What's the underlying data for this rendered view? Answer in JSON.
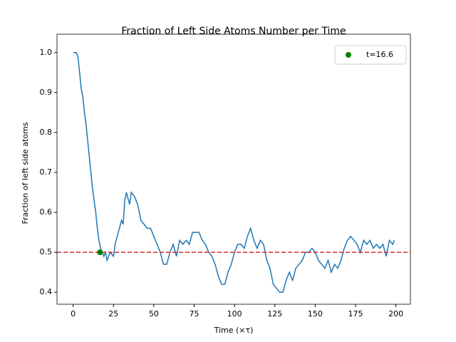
{
  "chart_data": {
    "type": "line",
    "title": "Fraction of Left Side Atoms Number per Time",
    "xlabel": "Time (×τ)",
    "ylabel": "Fraction of left side atoms",
    "xlim": [
      -10,
      209
    ],
    "ylim": [
      0.37,
      1.046
    ],
    "xticks": [
      0,
      25,
      50,
      75,
      100,
      125,
      150,
      175,
      200
    ],
    "yticks": [
      0.4,
      0.5,
      0.6,
      0.7,
      0.8,
      0.9,
      {
        "value": 1,
        "label": "1.0"
      }
    ],
    "x": [
      0,
      2,
      3,
      4,
      5,
      6,
      7,
      8,
      9,
      10,
      11,
      12,
      13,
      14,
      15,
      16,
      17,
      18,
      19,
      20,
      21,
      23,
      25,
      26,
      28,
      30,
      31,
      32,
      33,
      35,
      36,
      38,
      40,
      42,
      44,
      46,
      48,
      50,
      52,
      54,
      56,
      58,
      60,
      62,
      64,
      66,
      68,
      70,
      72,
      74,
      78,
      80,
      82,
      84,
      86,
      88,
      90,
      92,
      94,
      96,
      98,
      100,
      102,
      104,
      106,
      108,
      110,
      112,
      114,
      116,
      118,
      120,
      122,
      124,
      126,
      128,
      130,
      132,
      134,
      136,
      138,
      140,
      142,
      144,
      146,
      148,
      150,
      152,
      154,
      156,
      158,
      160,
      162,
      164,
      166,
      168,
      170,
      172,
      174,
      176,
      178,
      180,
      182,
      184,
      186,
      188,
      190,
      192,
      194,
      196,
      198,
      199
    ],
    "series": [
      {
        "color": "#1f77b4",
        "values": [
          1.0,
          1.0,
          0.99,
          0.95,
          0.91,
          0.89,
          0.85,
          0.82,
          0.78,
          0.74,
          0.7,
          0.66,
          0.63,
          0.6,
          0.56,
          0.53,
          0.51,
          0.5,
          0.49,
          0.5,
          0.48,
          0.5,
          0.49,
          0.52,
          0.55,
          0.58,
          0.57,
          0.63,
          0.65,
          0.62,
          0.65,
          0.64,
          0.62,
          0.58,
          0.57,
          0.56,
          0.56,
          0.54,
          0.52,
          0.5,
          0.47,
          0.47,
          0.5,
          0.52,
          0.49,
          0.53,
          0.52,
          0.53,
          0.52,
          0.55,
          0.55,
          0.53,
          0.52,
          0.5,
          0.49,
          0.47,
          0.44,
          0.42,
          0.42,
          0.45,
          0.47,
          0.5,
          0.52,
          0.52,
          0.51,
          0.54,
          0.56,
          0.53,
          0.51,
          0.53,
          0.52,
          0.48,
          0.46,
          0.42,
          0.41,
          0.4,
          0.4,
          0.43,
          0.45,
          0.43,
          0.46,
          0.47,
          0.48,
          0.5,
          0.5,
          0.51,
          0.5,
          0.48,
          0.47,
          0.46,
          0.48,
          0.45,
          0.47,
          0.46,
          0.48,
          0.51,
          0.53,
          0.54,
          0.53,
          0.52,
          0.5,
          0.53,
          0.52,
          0.53,
          0.51,
          0.52,
          0.51,
          0.52,
          0.49,
          0.53,
          0.52,
          0.53
        ]
      },
      {
        "name": "t=16.6",
        "color": "green",
        "marker": true,
        "x": [
          16.6
        ],
        "values": [
          0.5
        ]
      }
    ],
    "hlines": [
      {
        "y": 0.5,
        "color": "#d62728",
        "style": "dashed"
      }
    ],
    "legend": "upper right"
  }
}
